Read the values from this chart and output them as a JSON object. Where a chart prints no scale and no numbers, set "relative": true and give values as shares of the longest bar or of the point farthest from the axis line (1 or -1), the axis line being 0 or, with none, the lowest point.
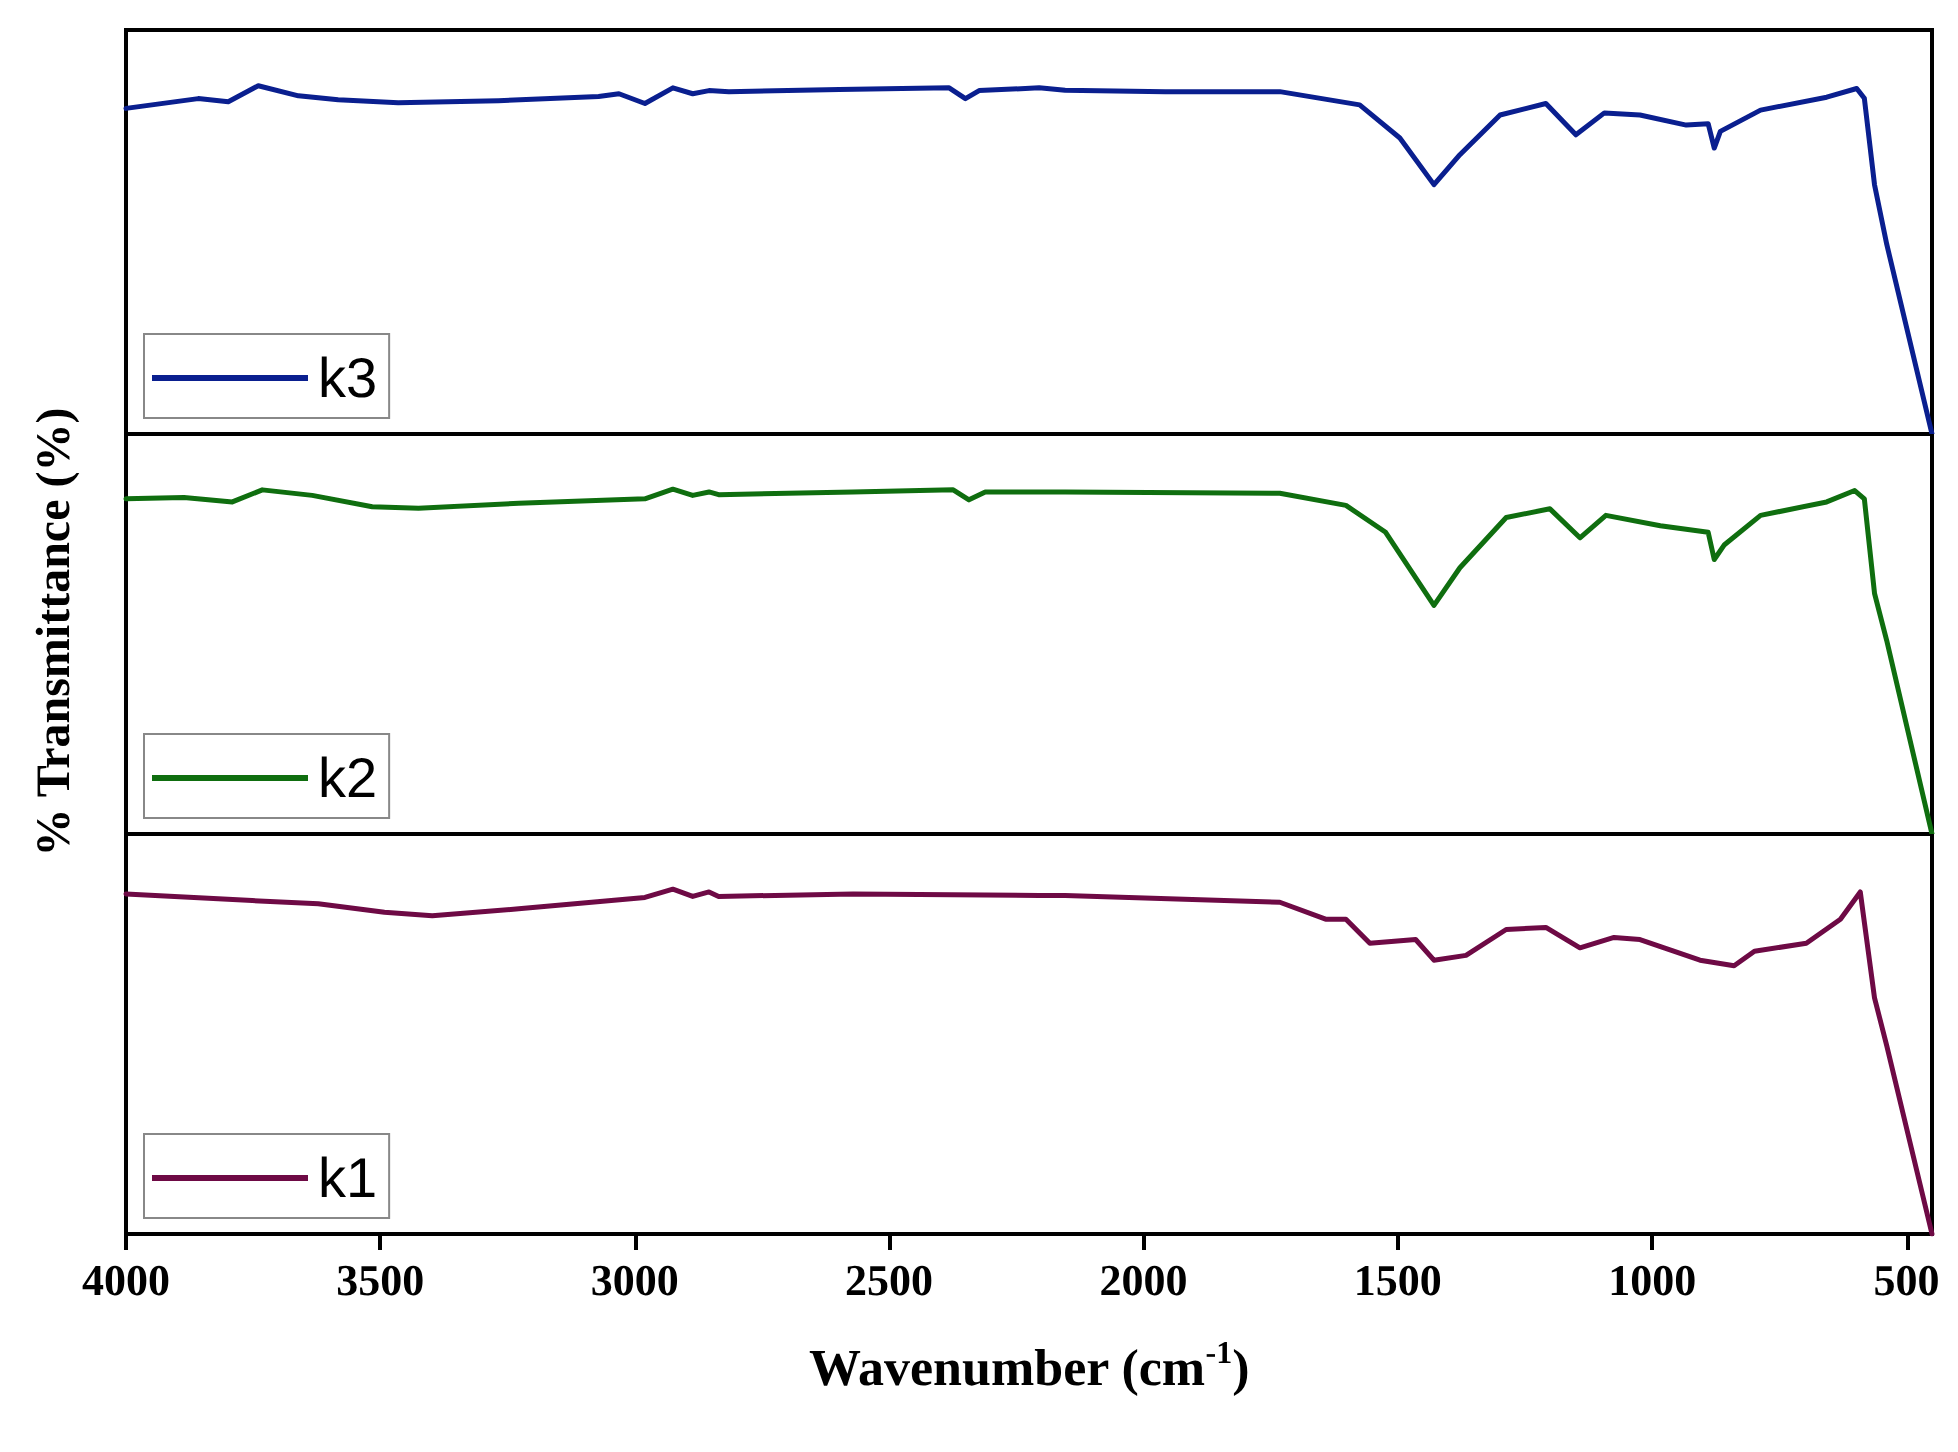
{
  "chart_data": [
    {
      "type": "line",
      "relative": true,
      "xlim": [
        4000,
        450
      ],
      "tick_labels": false,
      "legend": "bottom left",
      "series": [
        {
          "name": "k3",
          "color": "#0a1f8f",
          "x": [
            4000,
            3858,
            3799,
            3740,
            3661,
            3583,
            3465,
            3268,
            3071,
            3031,
            2980,
            2925,
            2886,
            2854,
            2815,
            2598,
            2382,
            2350,
            2323,
            2205,
            2154,
            1957,
            1732,
            1575,
            1496,
            1429,
            1378,
            1299,
            1209,
            1150,
            1094,
            1024,
            933,
            890,
            878,
            866,
            787,
            657,
            598,
            583,
            563,
            539,
            450
          ],
          "values": [
            0.935,
            0.963,
            0.954,
            1.0,
            0.971,
            0.96,
            0.951,
            0.957,
            0.969,
            0.977,
            0.949,
            0.994,
            0.977,
            0.986,
            0.983,
            0.989,
            0.994,
            0.963,
            0.986,
            0.994,
            0.987,
            0.983,
            0.983,
            0.945,
            0.85,
            0.716,
            0.802,
            0.916,
            0.949,
            0.859,
            0.922,
            0.916,
            0.887,
            0.891,
            0.821,
            0.869,
            0.93,
            0.967,
            0.992,
            0.964,
            0.716,
            0.545,
            0
          ]
        }
      ]
    },
    {
      "type": "line",
      "relative": true,
      "xlim": [
        4000,
        450
      ],
      "tick_labels": false,
      "legend": "bottom left",
      "ylabel": "% Transmittance (%)",
      "series": [
        {
          "name": "k2",
          "color": "#0f6e0f",
          "x": [
            4000,
            3886,
            3791,
            3732,
            3634,
            3516,
            3425,
            3228,
            2980,
            2925,
            2886,
            2854,
            2835,
            2571,
            2374,
            2343,
            2311,
            2154,
            1732,
            1602,
            1524,
            1429,
            1378,
            1287,
            1201,
            1142,
            1091,
            984,
            890,
            878,
            858,
            787,
            657,
            602,
            583,
            563,
            539,
            450
          ],
          "values": [
            0.972,
            0.976,
            0.963,
            0.998,
            0.982,
            0.949,
            0.945,
            0.959,
            0.972,
            1.0,
            0.982,
            0.992,
            0.984,
            0.992,
            0.998,
            0.969,
            0.992,
            0.992,
            0.988,
            0.953,
            0.875,
            0.663,
            0.772,
            0.918,
            0.943,
            0.859,
            0.924,
            0.894,
            0.875,
            0.796,
            0.839,
            0.924,
            0.963,
            0.996,
            0.972,
            0.698,
            0.561,
            0
          ]
        }
      ]
    },
    {
      "type": "line",
      "relative": true,
      "xlim": [
        4000,
        450
      ],
      "xticks": [
        4000,
        3500,
        3000,
        2500,
        2000,
        1500,
        1000,
        500
      ],
      "tick_labels": "x",
      "legend": "bottom left",
      "xlabel": "Wavenumber (cm$^{-1}$)",
      "series": [
        {
          "name": "k1",
          "color": "#6e0a45",
          "x": [
            4000,
            3752,
            3622,
            3492,
            3398,
            3228,
            2980,
            2925,
            2886,
            2854,
            2835,
            2571,
            2205,
            2154,
            1732,
            1642,
            1602,
            1555,
            1465,
            1429,
            1366,
            1287,
            1209,
            1142,
            1075,
            1024,
            906,
            839,
            799,
            697,
            630,
            591,
            563,
            539,
            450
          ],
          "values": [
            0.986,
            0.967,
            0.958,
            0.933,
            0.923,
            0.943,
            0.976,
            1.0,
            0.979,
            0.992,
            0.979,
            0.986,
            0.982,
            0.982,
            0.962,
            0.913,
            0.913,
            0.843,
            0.854,
            0.794,
            0.808,
            0.883,
            0.889,
            0.83,
            0.86,
            0.854,
            0.794,
            0.778,
            0.82,
            0.843,
            0.913,
            0.992,
            0.685,
            0.546,
            0
          ]
        }
      ]
    }
  ]
}
